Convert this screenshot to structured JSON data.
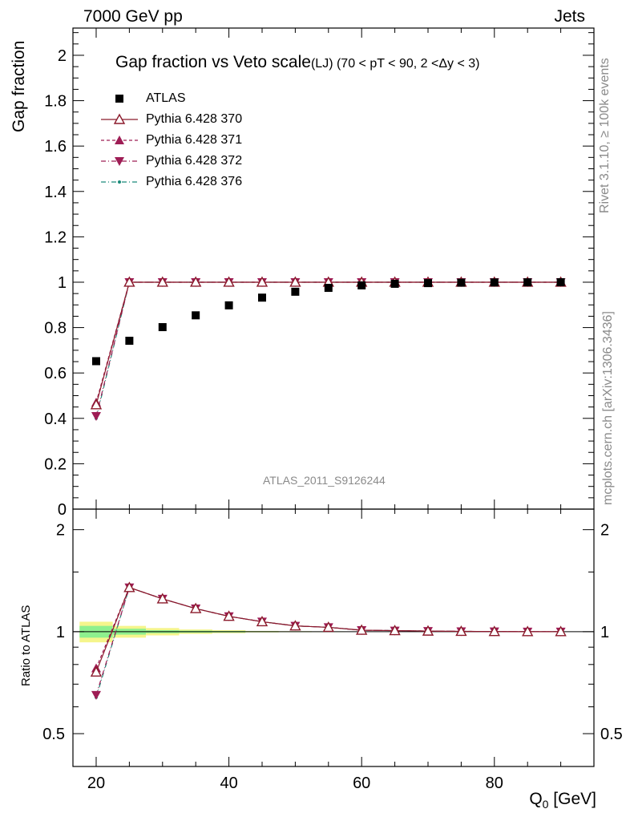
{
  "header": {
    "energy_label": "7000 GeV pp",
    "category_label": "Jets"
  },
  "title": {
    "main": "Gap fraction vs Veto scale",
    "sub": "(LJ) (70 < pT <  90, 2 <Δy < 3)"
  },
  "side_labels": {
    "rivet": "Rivet 3.1.10, ≥ 100k events",
    "mcplots": "mcplots.cern.ch [arXiv:1306.3436]"
  },
  "watermark": "ATLAS_2011_S9126244",
  "axes": {
    "ylabel_top": "Gap fraction",
    "ylabel_bottom": "Ratio to ATLAS",
    "xlabel": "Q",
    "xlabel_sub": "0",
    "xlabel_unit": " [GeV]",
    "x_ticks": [
      "20",
      "40",
      "60",
      "80"
    ],
    "y_ticks_top": [
      "0",
      "0.2",
      "0.4",
      "0.6",
      "0.8",
      "1",
      "1.2",
      "1.4",
      "1.6",
      "1.8",
      "2"
    ],
    "y_ticks_bottom": [
      "0.5",
      "1",
      "2"
    ]
  },
  "legend": [
    {
      "label": "ATLAS",
      "color": "#000000",
      "marker": "square"
    },
    {
      "label": "Pythia 6.428 370",
      "color": "#8b1a2b",
      "marker": "open-triangle-up"
    },
    {
      "label": "Pythia 6.428 371",
      "color": "#9e1d55",
      "marker": "triangle-up"
    },
    {
      "label": "Pythia 6.428 372",
      "color": "#9e1d55",
      "marker": "triangle-down"
    },
    {
      "label": "Pythia 6.428 376",
      "color": "#1a8a7a",
      "marker": "dot"
    }
  ],
  "chart_data": [
    {
      "type": "scatter",
      "title": "Gap fraction vs Veto scale (LJ) (70 < pT <  90, 2 <Δy < 3)",
      "xlabel": "Q0 [GeV]",
      "ylabel": "Gap fraction",
      "xlim": [
        16.5,
        95
      ],
      "ylim": [
        0,
        2.12
      ],
      "x": [
        20,
        25,
        30,
        35,
        40,
        45,
        50,
        55,
        60,
        65,
        70,
        75,
        80,
        85,
        90
      ],
      "series": [
        {
          "name": "ATLAS",
          "values": [
            0.652,
            0.742,
            0.802,
            0.854,
            0.898,
            0.932,
            0.958,
            0.975,
            0.986,
            0.993,
            0.996,
            0.998,
            0.999,
            0.9995,
            1.0
          ]
        },
        {
          "name": "Pythia 6.428 370",
          "values": [
            0.46,
            1,
            1,
            1,
            1,
            1,
            1,
            1,
            1,
            1,
            1,
            1,
            1,
            1,
            1
          ]
        },
        {
          "name": "Pythia 6.428 371",
          "values": [
            0.47,
            1,
            1,
            1,
            1,
            1,
            1,
            1,
            1,
            1,
            1,
            1,
            1,
            1,
            1
          ]
        },
        {
          "name": "Pythia 6.428 372",
          "values": [
            0.41,
            1,
            1,
            1,
            1,
            1,
            1,
            1,
            1,
            1,
            1,
            1,
            1,
            1,
            1
          ]
        },
        {
          "name": "Pythia 6.428 376",
          "values": [
            0.4,
            1,
            1,
            1,
            1,
            1,
            1,
            1,
            1,
            1,
            1,
            1,
            1,
            1,
            1
          ]
        }
      ]
    },
    {
      "type": "line",
      "ylabel": "Ratio to ATLAS",
      "log_y": true,
      "ylim": [
        0.4,
        2.3
      ],
      "x": [
        20,
        25,
        30,
        35,
        40,
        45,
        50,
        55,
        60,
        65,
        70,
        75,
        80,
        85,
        90
      ],
      "series": [
        {
          "name": "Pythia 6.428 370",
          "values": [
            0.76,
            1.35,
            1.25,
            1.17,
            1.11,
            1.07,
            1.04,
            1.03,
            1.01,
            1.007,
            1.004,
            1.002,
            1.001,
            1.0,
            1.0
          ]
        },
        {
          "name": "Pythia 6.428 371",
          "values": [
            0.78,
            1.35,
            1.25,
            1.17,
            1.11,
            1.07,
            1.04,
            1.03,
            1.01,
            1.007,
            1.004,
            1.002,
            1.001,
            1.0,
            1.0
          ]
        },
        {
          "name": "Pythia 6.428 372",
          "values": [
            0.65,
            1.35,
            1.25,
            1.17,
            1.11,
            1.07,
            1.04,
            1.03,
            1.01,
            1.007,
            1.004,
            1.002,
            1.001,
            1.0,
            1.0
          ]
        },
        {
          "name": "Pythia 6.428 376",
          "values": [
            0.64,
            1.35,
            1.25,
            1.17,
            1.11,
            1.07,
            1.04,
            1.03,
            1.01,
            1.007,
            1.004,
            1.002,
            1.001,
            1.0,
            1.0
          ]
        }
      ],
      "uncertainty_band": {
        "x_edges": [
          17.5,
          22.5,
          27.5,
          32.5,
          37.5,
          42.5,
          47.5,
          52.5,
          57.5
        ],
        "outer": [
          [
            0.93,
            1.07
          ],
          [
            0.96,
            1.04
          ],
          [
            0.975,
            1.025
          ],
          [
            0.985,
            1.015
          ],
          [
            0.99,
            1.01
          ],
          [
            0.995,
            1.005
          ],
          [
            0.997,
            1.003
          ],
          [
            0.998,
            1.002
          ]
        ],
        "inner": [
          [
            0.96,
            1.04
          ],
          [
            0.98,
            1.02
          ],
          [
            0.99,
            1.01
          ],
          [
            0.993,
            1.007
          ],
          [
            0.995,
            1.005
          ],
          [
            0.997,
            1.003
          ],
          [
            0.998,
            1.002
          ],
          [
            0.999,
            1.001
          ]
        ],
        "outer_color": "#f5f58c",
        "inner_color": "#8ef08e"
      }
    }
  ]
}
